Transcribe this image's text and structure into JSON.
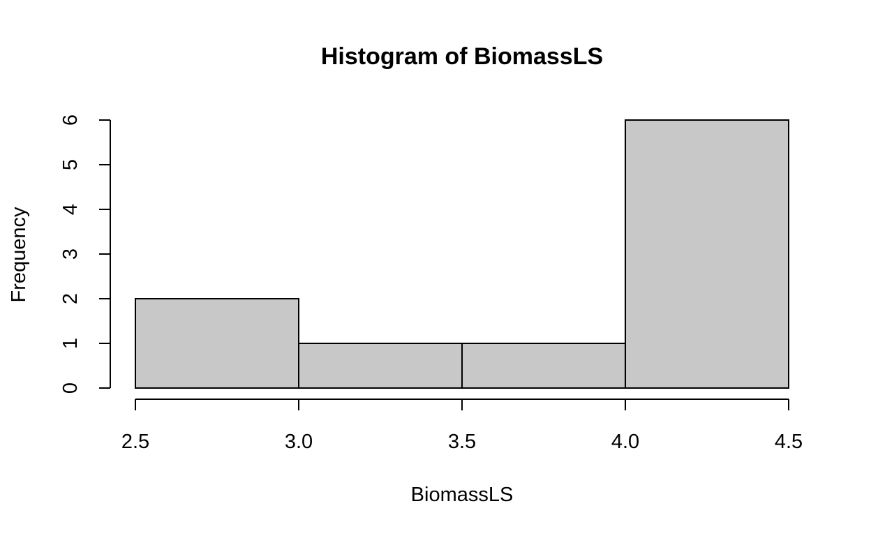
{
  "chart_data": {
    "type": "bar",
    "title": "Histogram of BiomassLS",
    "xlabel": "BiomassLS",
    "ylabel": "Frequency",
    "bins": [
      {
        "x0": 2.5,
        "x1": 3.0,
        "count": 2
      },
      {
        "x0": 3.0,
        "x1": 3.5,
        "count": 1
      },
      {
        "x0": 3.5,
        "x1": 4.0,
        "count": 1
      },
      {
        "x0": 4.0,
        "x1": 4.5,
        "count": 6
      }
    ],
    "xticks": [
      "2.5",
      "3.0",
      "3.5",
      "4.0",
      "4.5"
    ],
    "yticks": [
      "0",
      "1",
      "2",
      "3",
      "4",
      "5",
      "6"
    ],
    "xlim": [
      2.5,
      4.5
    ],
    "ylim": [
      0,
      6
    ],
    "grid": false,
    "bar_color": "#c8c8c8",
    "edge_color": "#000000"
  }
}
